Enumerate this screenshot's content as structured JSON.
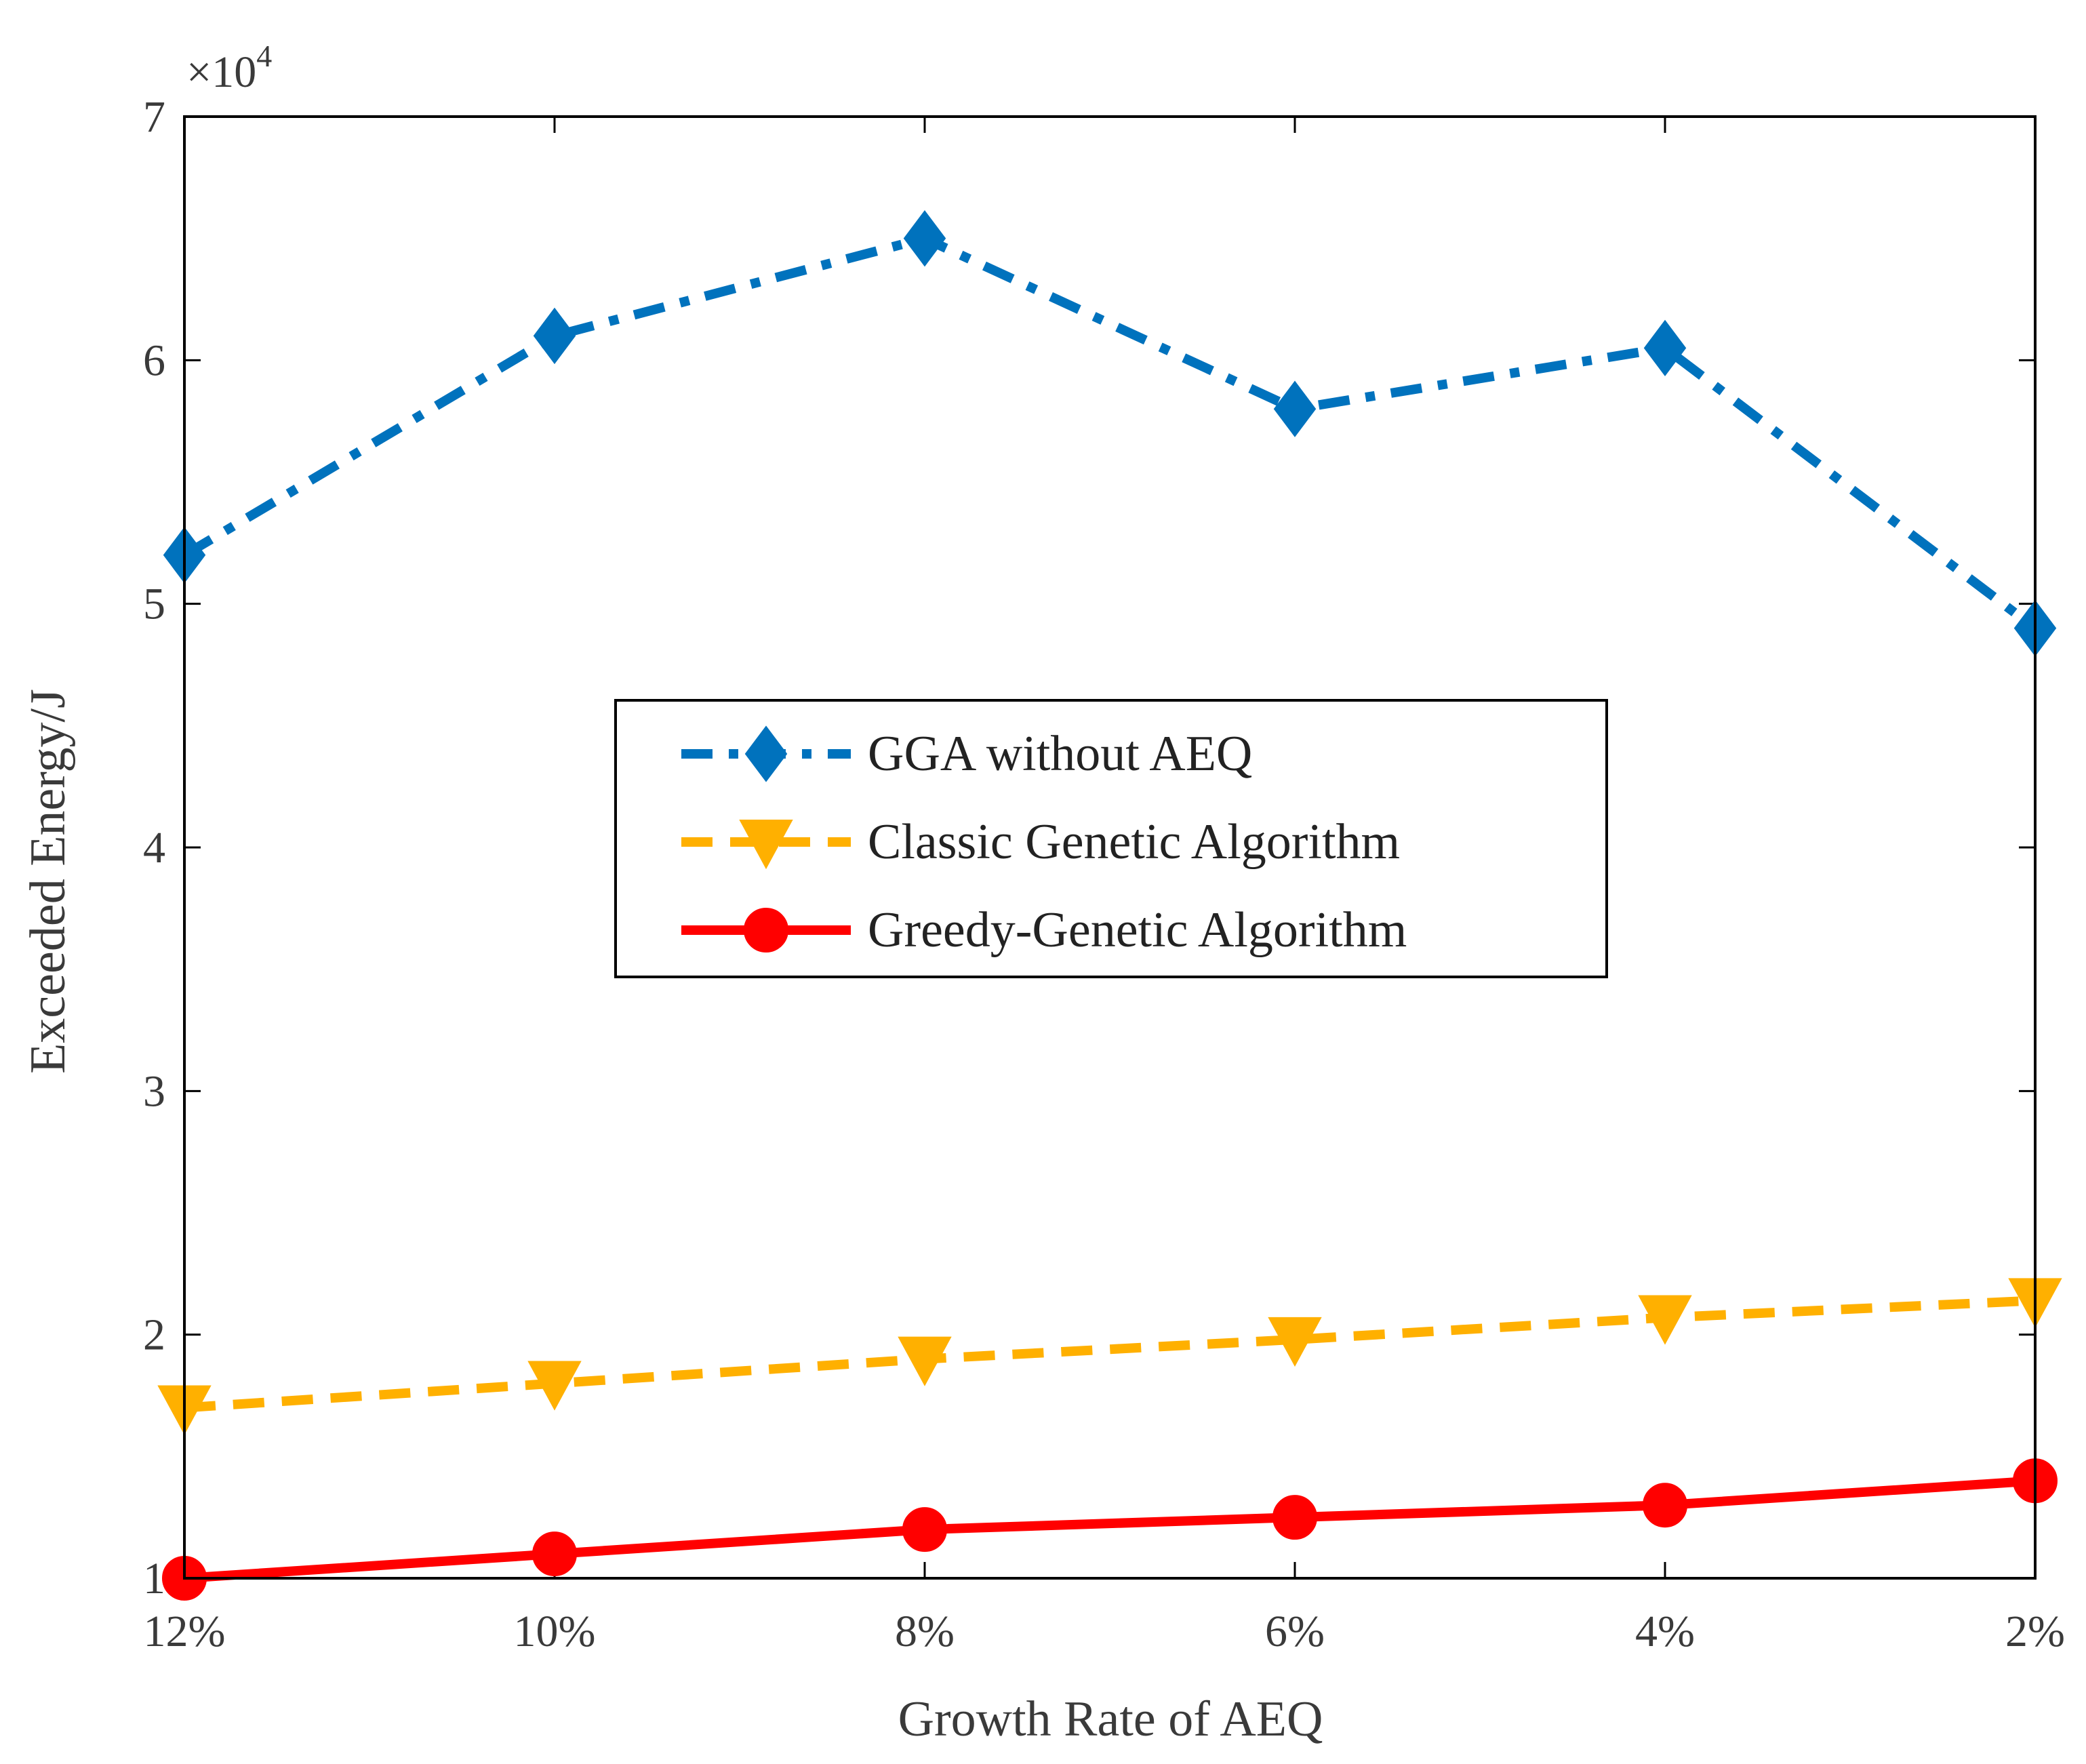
{
  "chart_data": {
    "type": "line",
    "xlabel": "Growth Rate of AEQ",
    "ylabel": "Exceeded Energy/J",
    "categories": [
      "12%",
      "10%",
      "8%",
      "6%",
      "4%",
      "2%"
    ],
    "ylim": [
      10000,
      70000
    ],
    "yticks": [
      10000,
      20000,
      30000,
      40000,
      50000,
      60000,
      70000
    ],
    "ytick_labels": [
      "1",
      "2",
      "3",
      "4",
      "5",
      "6",
      "7"
    ],
    "y_multiplier": {
      "base": "×10",
      "exponent": "4"
    },
    "grid": false,
    "legend_position": "center",
    "series": [
      {
        "name": "GGA without AEQ",
        "color": "#0072BD",
        "line": "dashdot",
        "marker": "diamond",
        "values": [
          52000,
          61000,
          65000,
          58000,
          60500,
          49000
        ]
      },
      {
        "name": "Classic Genetic Algorithm",
        "color": "#FFB000",
        "line": "dashed",
        "marker": "triangle-down",
        "values": [
          17000,
          18000,
          19000,
          19800,
          20700,
          21400
        ]
      },
      {
        "name": "Greedy-Genetic Algorithm",
        "color": "#FF0000",
        "line": "solid",
        "marker": "circle",
        "values": [
          10000,
          11000,
          12000,
          12500,
          13000,
          14000
        ]
      }
    ]
  }
}
